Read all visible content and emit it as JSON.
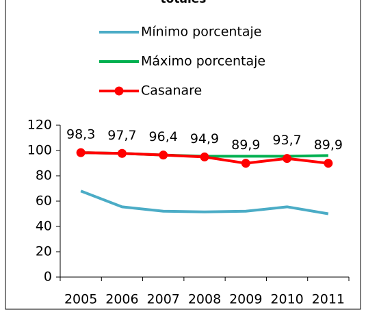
{
  "chart_data": {
    "type": "line",
    "title": "totales",
    "categories": [
      "2005",
      "2006",
      "2007",
      "2008",
      "2009",
      "2010",
      "2011"
    ],
    "series": [
      {
        "name": "Mínimo porcentaje",
        "color": "#4bacc6",
        "values": [
          68,
          55.5,
          52,
          51.5,
          52,
          55.5,
          50
        ]
      },
      {
        "name": "Máximo porcentaje",
        "color": "#00b050",
        "values": [
          98.3,
          97.7,
          96.4,
          95.5,
          95.5,
          95.5,
          96
        ]
      },
      {
        "name": "Casanare",
        "color": "#ff0000",
        "marker": true,
        "values": [
          98.3,
          97.7,
          96.4,
          94.9,
          89.9,
          93.7,
          89.9
        ],
        "value_labels": [
          "98,3",
          "97,7",
          "96,4",
          "94,9",
          "89,9",
          "93,7",
          "89,9"
        ]
      }
    ],
    "ylim": [
      0,
      120
    ],
    "yticks": [
      0,
      20,
      40,
      60,
      80,
      100,
      120
    ],
    "legend": "top"
  }
}
